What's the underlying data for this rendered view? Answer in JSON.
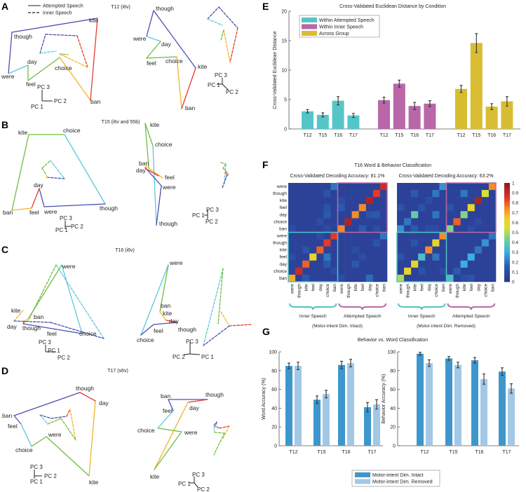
{
  "panel_letters": [
    "A",
    "B",
    "C",
    "D",
    "E",
    "F",
    "G"
  ],
  "palette": {
    "blue": "#4a4eb0",
    "cyan": "#5cc8d6",
    "green": "#6dbd3d",
    "orange": "#f4b226",
    "red": "#e63a2e",
    "purple": "#b967a8",
    "teal": "#4fc4c4",
    "gold": "#d8bd32",
    "intact": "#3d97cc",
    "removed": "#a3c8e6"
  },
  "legend_A": {
    "solid": "Attempted Speech",
    "dashed": "Inner Speech"
  },
  "pc_labels": [
    "PC 1",
    "PC 2",
    "PC 3"
  ],
  "trajectory_panels": [
    {
      "title": "T12 (i6v)",
      "views": [
        {
          "labels": [
            "kite",
            "though",
            "day",
            "choice",
            "were",
            "feel",
            "ban"
          ]
        },
        {
          "labels": [
            "though",
            "were",
            "day",
            "feel",
            "choice",
            "kite",
            "ban"
          ]
        }
      ]
    },
    {
      "title": "T15 (i6v and 55b)",
      "views": [
        {
          "labels": [
            "kite",
            "choice",
            "day",
            "ban",
            "feel",
            "were",
            "though"
          ]
        },
        {
          "labels": [
            "kite",
            "choice",
            "ban",
            "day",
            "feel",
            "were",
            "though"
          ]
        }
      ]
    },
    {
      "title": "T16 (i6v)",
      "views": [
        {
          "labels": [
            "were",
            "kite",
            "ban",
            "day",
            "though",
            "feel",
            "choice"
          ]
        },
        {
          "labels": [
            "were",
            "ban",
            "kite",
            "day",
            "though",
            "feel",
            "choice"
          ]
        }
      ]
    },
    {
      "title": "T17 (s6v)",
      "views": [
        {
          "labels": [
            "though",
            "day",
            "ban",
            "feel",
            "were",
            "choice",
            "kite"
          ]
        },
        {
          "labels": [
            "ban",
            "though",
            "feel",
            "day",
            "choice",
            "were",
            "kite"
          ]
        }
      ]
    }
  ],
  "chart_data": [
    {
      "id": "E",
      "type": "bar",
      "title": "Cross-Validated Euclidean Distance by Condition",
      "ylabel": "Cross-Validated Euclidean Distance",
      "xlabel": "",
      "ylim": [
        0,
        20
      ],
      "yticks": [
        0,
        5,
        10,
        15,
        20
      ],
      "categories": [
        "T12",
        "T15",
        "T16",
        "T17"
      ],
      "legend_position": "top-left",
      "series": [
        {
          "name": "Within Attempted Speech",
          "color": "#55c6c8",
          "values": [
            3.0,
            2.4,
            4.8,
            2.3
          ],
          "errors": [
            0.3,
            0.35,
            0.7,
            0.35
          ]
        },
        {
          "name": "Within Inner Speech",
          "color": "#b967a8",
          "values": [
            4.9,
            7.7,
            3.9,
            4.3
          ],
          "errors": [
            0.5,
            0.6,
            0.6,
            0.5
          ]
        },
        {
          "name": "Across Group",
          "color": "#d8bd32",
          "values": [
            6.8,
            14.6,
            3.8,
            4.7
          ],
          "errors": [
            0.6,
            1.6,
            0.5,
            0.8
          ]
        }
      ]
    },
    {
      "id": "F",
      "type": "heatmap",
      "title": "T16 Word & Behavior Classification",
      "row_labels": [
        "were",
        "though",
        "kite",
        "feel",
        "day",
        "choice",
        "ban",
        "were",
        "though",
        "kite",
        "feel",
        "day",
        "choice",
        "ban"
      ],
      "col_labels": [
        "were",
        "though",
        "kite",
        "feel",
        "day",
        "choice",
        "ban",
        "were",
        "though",
        "kite",
        "feel",
        "day",
        "choice",
        "ban"
      ],
      "colorbar_ticks": [
        "0",
        "0.1",
        "0.2",
        "0.3",
        "0.4",
        "0.5",
        "0.6",
        "0.7",
        "0.8",
        "0.9",
        "1"
      ],
      "clim": [
        0,
        1
      ],
      "background_value": 0.05,
      "matrices": [
        {
          "subtitle": "Cross-Validated Decoding Accuracy: 81.1%",
          "group_labels": [
            "Inner Speech",
            "Attempted Speech"
          ],
          "caption": "(Motor-intent Dim. Intact)",
          "cells": [
            [
              0,
              13,
              0.9
            ],
            [
              1,
              12,
              0.85
            ],
            [
              2,
              11,
              0.95
            ],
            [
              3,
              10,
              0.75
            ],
            [
              4,
              9,
              0.75
            ],
            [
              5,
              8,
              0.95
            ],
            [
              6,
              7,
              0.75
            ],
            [
              7,
              6,
              0.85
            ],
            [
              8,
              5,
              0.85
            ],
            [
              9,
              4,
              0.8
            ],
            [
              10,
              3,
              0.6
            ],
            [
              11,
              2,
              0.8
            ],
            [
              12,
              1,
              0.9
            ],
            [
              13,
              0,
              0.7
            ],
            [
              0,
              6,
              0.2
            ],
            [
              1,
              5,
              0.12
            ],
            [
              3,
              5,
              0.12
            ],
            [
              4,
              5,
              0.15
            ],
            [
              5,
              4,
              0.1
            ],
            [
              6,
              0,
              0.1
            ],
            [
              6,
              5,
              0.1
            ],
            [
              2,
              7,
              0.1
            ],
            [
              3,
              7,
              0.15
            ],
            [
              6,
              10,
              0.15
            ],
            [
              4,
              11,
              0.12
            ],
            [
              4,
              12,
              0.15
            ],
            [
              6,
              12,
              0.1
            ],
            [
              9,
              2,
              0.12
            ],
            [
              10,
              0,
              0.1
            ],
            [
              10,
              5,
              0.2
            ],
            [
              11,
              5,
              0.15
            ],
            [
              13,
              2,
              0.15
            ],
            [
              12,
              6,
              0.1
            ],
            [
              7,
              4,
              0.1
            ],
            [
              7,
              13,
              0.2
            ],
            [
              8,
              12,
              0.12
            ],
            [
              9,
              9,
              0.1
            ],
            [
              10,
              10,
              0.1
            ],
            [
              11,
              9,
              0.15
            ],
            [
              13,
              7,
              0.1
            ],
            [
              13,
              11,
              0.18
            ]
          ]
        },
        {
          "subtitle": "Cross-Validated Decoding Accuracy: 63.2%",
          "group_labels": [
            "Inner Speech",
            "Attempted Speech"
          ],
          "caption": "(Motor-intent Dim. Removed)",
          "cells": [
            [
              0,
              13,
              0.75
            ],
            [
              1,
              12,
              0.55
            ],
            [
              2,
              11,
              0.95
            ],
            [
              3,
              10,
              0.6
            ],
            [
              4,
              9,
              0.45
            ],
            [
              5,
              8,
              0.8
            ],
            [
              6,
              7,
              0.45
            ],
            [
              7,
              6,
              0.75
            ],
            [
              8,
              5,
              0.6
            ],
            [
              9,
              4,
              0.75
            ],
            [
              10,
              3,
              0.35
            ],
            [
              11,
              2,
              0.6
            ],
            [
              12,
              1,
              0.6
            ],
            [
              13,
              0,
              0.5
            ],
            [
              0,
              6,
              0.25
            ],
            [
              1,
              2,
              0.15
            ],
            [
              1,
              5,
              0.2
            ],
            [
              2,
              4,
              0.1
            ],
            [
              3,
              0,
              0.12
            ],
            [
              3,
              3,
              0.12
            ],
            [
              4,
              2,
              0.4
            ],
            [
              4,
              5,
              0.2
            ],
            [
              5,
              1,
              0.2
            ],
            [
              6,
              0,
              0.25
            ],
            [
              6,
              2,
              0.15
            ],
            [
              6,
              4,
              0.1
            ],
            [
              6,
              5,
              0.1
            ],
            [
              1,
              9,
              0.2
            ],
            [
              3,
              7,
              0.12
            ],
            [
              5,
              11,
              0.1
            ],
            [
              6,
              10,
              0.1
            ],
            [
              8,
              2,
              0.12
            ],
            [
              10,
              0,
              0.12
            ],
            [
              10,
              5,
              0.2
            ],
            [
              12,
              3,
              0.12
            ],
            [
              12,
              6,
              0.1
            ],
            [
              7,
              13,
              0.2
            ],
            [
              8,
              12,
              0.25
            ],
            [
              9,
              11,
              0.2
            ],
            [
              10,
              10,
              0.3
            ],
            [
              11,
              9,
              0.3
            ],
            [
              12,
              8,
              0.15
            ],
            [
              13,
              7,
              0.35
            ],
            [
              13,
              9,
              0.1
            ],
            [
              13,
              10,
              0.12
            ]
          ]
        }
      ]
    },
    {
      "id": "G",
      "type": "bar",
      "title": "Behavior vs. Word Classification",
      "categories": [
        "T12",
        "T15",
        "T16",
        "T17"
      ],
      "legend": [
        "Motor-intent Dim. Intact",
        "Motor-intent Dim. Removed"
      ],
      "legend_position": "bottom-center",
      "subplots": [
        {
          "ylabel": "Word Accuracy (%)",
          "ylim": [
            0,
            100
          ],
          "yticks": [
            0,
            20,
            40,
            60,
            80,
            100
          ],
          "series": [
            {
              "name": "Motor-intent Dim. Intact",
              "values": [
                85,
                49,
                86,
                41
              ],
              "errors": [
                3,
                4,
                4,
                5
              ]
            },
            {
              "name": "Motor-intent Dim. Removed",
              "values": [
                85,
                55,
                88,
                44
              ],
              "errors": [
                4,
                4,
                4,
                5
              ]
            }
          ]
        },
        {
          "ylabel": "Behavior Accuracy (%)",
          "ylim": [
            0,
            100
          ],
          "yticks": [
            0,
            20,
            40,
            60,
            80,
            100
          ],
          "series": [
            {
              "name": "Motor-intent Dim. Intact",
              "values": [
                98,
                93,
                91,
                79
              ],
              "errors": [
                1.5,
                2,
                3,
                4
              ]
            },
            {
              "name": "Motor-intent Dim. Removed",
              "values": [
                88,
                86,
                71,
                61
              ],
              "errors": [
                3.5,
                3,
                5.5,
                5
              ]
            }
          ]
        }
      ]
    }
  ]
}
